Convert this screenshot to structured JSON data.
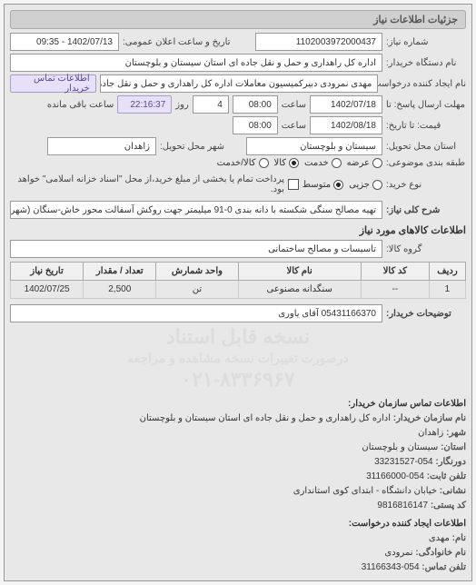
{
  "section_header": "جزئیات اطلاعات نیاز",
  "req_number_label": "شماره نیاز:",
  "req_number": "1102003972000437",
  "pub_date_label": "تاریخ و ساعت اعلان عمومی:",
  "pub_date": "1402/07/13 - 09:35",
  "buyer_org_label": "نام دستگاه خریدار:",
  "buyer_org": "اداره کل راهداری و حمل و نقل جاده ای استان سیستان و بلوچستان",
  "creator_label": "نام ایجاد کننده درخواست:",
  "creator": "مهدی نمرودی دبیرکمیسیون معاملات اداره کل راهداری و حمل و نقل جاده ای اس",
  "contact_btn": "اطلاعات تماس خریدار",
  "deadline_reply_label": "مهلت ارسال پاسخ: تا",
  "deadline_date": "1402/07/18",
  "hour_label": "ساعت",
  "deadline_hour": "08:00",
  "day_count": "4",
  "day_label": "روز",
  "remaining_label": "ساعت باقی مانده",
  "remaining_time": "22:16:37",
  "validity_label": "قیمت: تا تاریخ:",
  "validity_date": "1402/08/18",
  "validity_hour": "08:00",
  "province_label": "استان محل تحویل:",
  "province": "سیستان و بلوچستان",
  "city_label": "شهر محل تحویل:",
  "city": "زاهدان",
  "budget_label": "طبقه بندی موضوعی:",
  "radio_supply": "عرضه",
  "radio_service": "خدمت",
  "radio_goods": "کالا",
  "radio_exchange": "کالا/خدمت",
  "buyer_type_label": "نوع خرید:",
  "radio_partial": "جزیی",
  "radio_medium": "متوسط",
  "payment_note": "پرداخت تمام یا بخشی از مبلغ خرید،از محل \"اسناد خزانه اسلامی\" خواهد بود.",
  "title_label": "شرح کلی نیاز:",
  "title_text": "تهیه مصالح سنگی شکسته با دانه بندی 0-91 میلیمتر جهت روکش آسفالت محور خاش-سنگان (شهرک دورودی)",
  "goods_header": "اطلاعات کالاهای مورد نیاز",
  "group_label": "گروه کالا:",
  "group_value": "تاسیسات و مصالح ساختمانی",
  "table": {
    "headers": [
      "ردیف",
      "کد کالا",
      "نام کالا",
      "واحد شمارش",
      "تعداد / مقدار",
      "تاریخ نیاز"
    ],
    "rows": [
      [
        "1",
        "--",
        "سنگدانه مصنوعی",
        "تن",
        "2,500",
        "1402/07/25"
      ]
    ],
    "col_widths": [
      "8%",
      "15%",
      "27%",
      "18%",
      "16%",
      "16%"
    ]
  },
  "buyer_desc_label": "توضیحات خریدار:",
  "buyer_desc": "05431166370 آقای یاوری",
  "watermark1": "نسخه قابل استناد",
  "watermark2": "درصورت تغییرات نسخه مشاهده و مراجعه",
  "watermark3": "۰۲۱-۸۳۳۶۹۶۷",
  "contact_header": "اطلاعات تماس سازمان خریدار:",
  "contact": {
    "org_label": "نام سازمان خریدار:",
    "org": "اداره کل راهداری و حمل و نقل جاده ای استان سیستان و بلوچستان",
    "city_label": "شهر:",
    "city": "زاهدان",
    "province_label": "استان:",
    "province": "سیستان و بلوچستان",
    "fax_label": "دورنگار:",
    "fax": "054-33231527",
    "phone_label": "تلفن ثابت:",
    "phone": "054-31166000",
    "address_label": "نشانی:",
    "address": "خیابان دانشگاه - ابتدای کوی استانداری",
    "postal_label": "کد پستی:",
    "postal": "9816816147"
  },
  "requester_header": "اطلاعات ایجاد کننده درخواست:",
  "requester": {
    "name_label": "نام:",
    "name": "مهدی",
    "family_label": "نام خانوادگی:",
    "family": "نمرودی",
    "phone_label": "تلفن تماس:",
    "phone": "054-31166343"
  },
  "colors": {
    "bg": "#e8e8e8",
    "field_bg": "#ffffff",
    "border": "#999999",
    "header_bg": "#d0d0d0",
    "violet_bg": "#e8e0f8",
    "violet_border": "#a89cc8",
    "watermark": "#dddddd"
  }
}
